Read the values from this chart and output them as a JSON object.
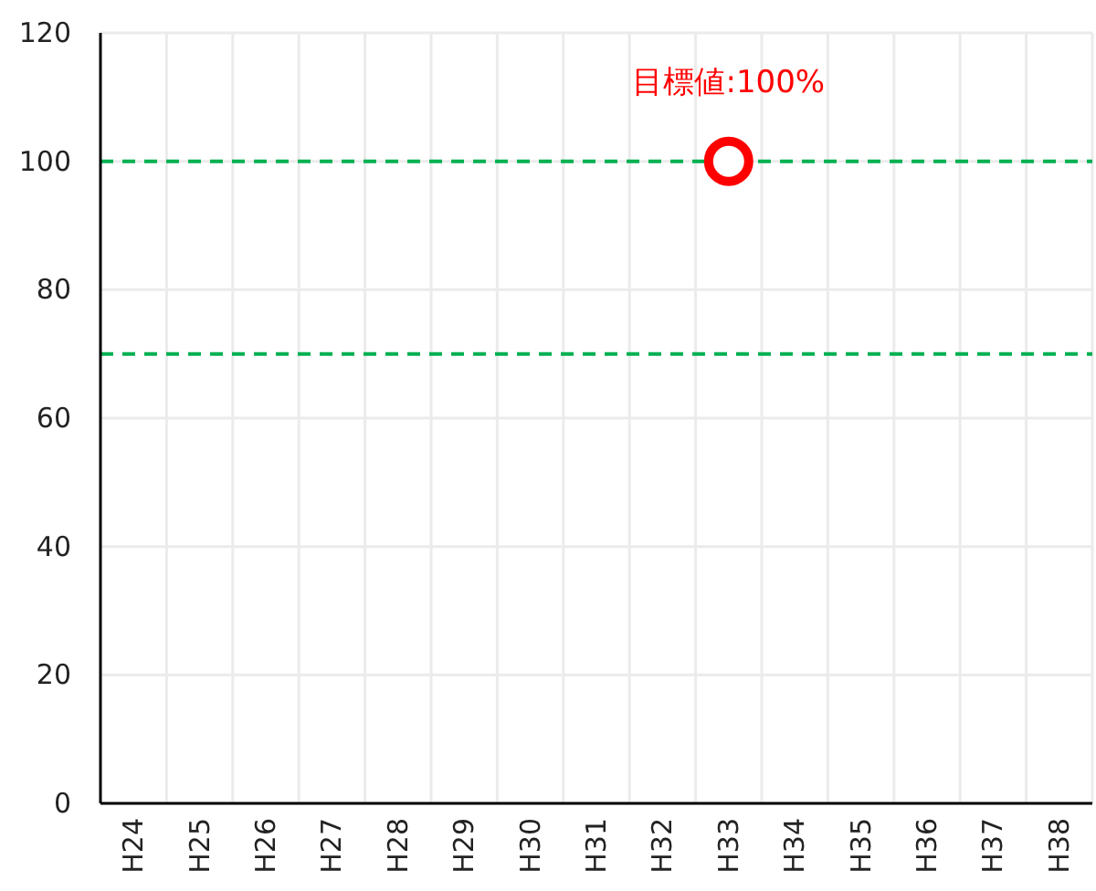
{
  "chart_data": {
    "type": "scatter",
    "categories": [
      "H24",
      "H25",
      "H26",
      "H27",
      "H28",
      "H29",
      "H30",
      "H31",
      "H32",
      "H33",
      "H34",
      "H35",
      "H36",
      "H37",
      "H38"
    ],
    "series": [
      {
        "color": "#ff0000",
        "values": [
          null,
          null,
          null,
          null,
          null,
          null,
          null,
          null,
          null,
          100,
          null,
          null,
          null,
          null,
          null
        ]
      }
    ],
    "marker": "circle",
    "ylim": [
      0,
      120
    ],
    "yticks": [
      0,
      20,
      40,
      60,
      80,
      100,
      120
    ],
    "grid": true,
    "ref_lines": [
      {
        "axis": "y",
        "value": 100,
        "color": "#00b050",
        "line_style": "dashed"
      },
      {
        "axis": "y",
        "value": 70,
        "color": "#00b050",
        "line_style": "dashed"
      }
    ],
    "annotations": [
      {
        "text": "目標値:100%",
        "x": "H33",
        "y": 100
      }
    ]
  }
}
